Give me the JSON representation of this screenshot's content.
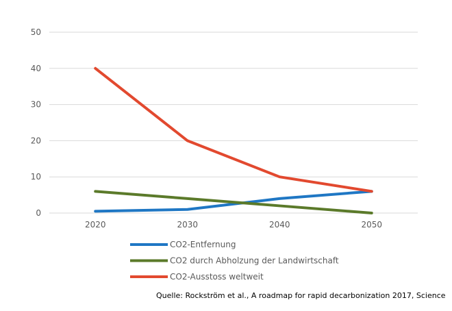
{
  "chart_data": {
    "type": "line",
    "categories": [
      "2020",
      "2030",
      "2040",
      "2050"
    ],
    "ylim": [
      0,
      50
    ],
    "yticks": [
      0,
      10,
      20,
      30,
      40,
      50
    ],
    "grid": true,
    "legend_placement": "bottom",
    "series": [
      {
        "name": "CO2-Entfernung",
        "color": "#1f77c4",
        "values": [
          0.5,
          1,
          4,
          6
        ]
      },
      {
        "name": "CO2 durch Abholzung der Landwirtschaft",
        "color": "#5b7a2a",
        "values": [
          6,
          4,
          2,
          0
        ]
      },
      {
        "name": "CO2-Ausstoss weltweit",
        "color": "#e2492f",
        "values": [
          40,
          20,
          10,
          6
        ]
      }
    ]
  },
  "source": "Quelle:  Rockström et al., A roadmap for rapid decarbonization 2017, Science"
}
